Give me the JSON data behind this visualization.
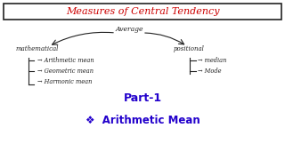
{
  "bg_color": "#ffffff",
  "title_text": "Measures of Central Tendency",
  "title_color": "#cc0000",
  "title_box_color": "#222222",
  "average_text": "Average",
  "math_text": "mathematical",
  "pos_text": "positional",
  "math_items": [
    "→ Arithmetic mean",
    "→ Geometric mean",
    "→ Harmonic mean"
  ],
  "pos_items": [
    "→ median",
    "→ Mode"
  ],
  "part_text": "Part-1",
  "part_color": "#2200cc",
  "bottom_text": "❖  Arithmetic Mean",
  "bottom_text_color": "#2200cc",
  "body_text_color": "#222222",
  "figsize": [
    3.2,
    1.8
  ],
  "dpi": 100
}
